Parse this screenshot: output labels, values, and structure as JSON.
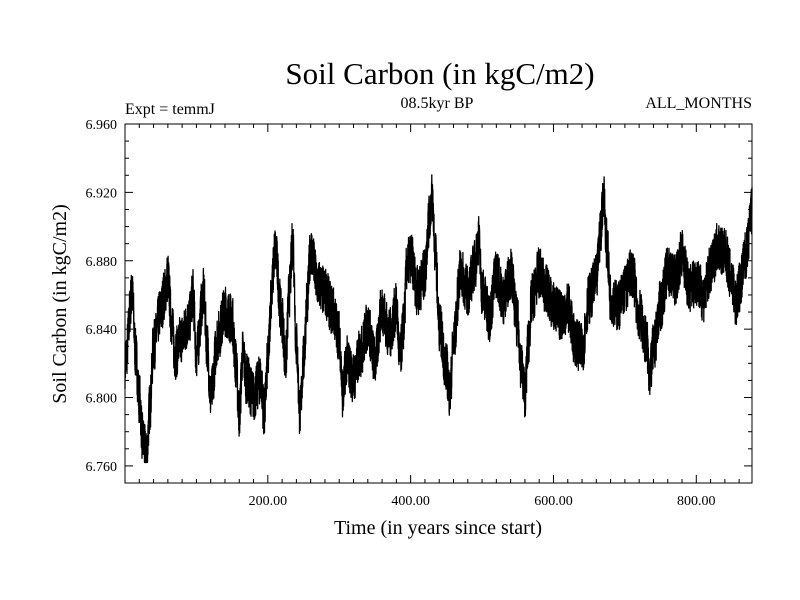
{
  "chart_data": {
    "type": "line",
    "title": "Soil Carbon (in kgC/m2)",
    "subtitle": "08.5kyr BP",
    "left_note": "Expt = temmJ",
    "right_note": "ALL_MONTHS",
    "xlabel": "Time (in years since start)",
    "ylabel": "Soil Carbon (in kgC/m2)",
    "xlim": [
      0,
      878
    ],
    "ylim": [
      6.75,
      6.96
    ],
    "xticks": [
      200,
      400,
      600,
      800
    ],
    "xtick_labels": [
      "200.00",
      "400.00",
      "600.00",
      "800.00"
    ],
    "yticks": [
      6.76,
      6.8,
      6.84,
      6.88,
      6.92,
      6.96
    ],
    "ytick_labels": [
      "6.760",
      "6.800",
      "6.840",
      "6.880",
      "6.920",
      "6.960"
    ],
    "series": [
      {
        "name": "Soil Carbon",
        "color": "#000000",
        "x": [
          0,
          10,
          15,
          20,
          25,
          30,
          35,
          40,
          50,
          55,
          60,
          65,
          70,
          80,
          90,
          95,
          100,
          110,
          115,
          120,
          130,
          140,
          150,
          155,
          160,
          165,
          170,
          180,
          190,
          195,
          200,
          205,
          210,
          220,
          225,
          230,
          235,
          240,
          245,
          250,
          255,
          260,
          270,
          280,
          290,
          300,
          305,
          310,
          320,
          330,
          340,
          350,
          360,
          370,
          380,
          385,
          390,
          395,
          400,
          410,
          420,
          425,
          430,
          435,
          440,
          450,
          455,
          460,
          470,
          480,
          490,
          495,
          500,
          510,
          520,
          530,
          540,
          550,
          555,
          560,
          565,
          570,
          580,
          590,
          600,
          610,
          620,
          630,
          640,
          650,
          660,
          665,
          670,
          675,
          680,
          690,
          700,
          710,
          720,
          730,
          735,
          740,
          750,
          760,
          770,
          780,
          790,
          800,
          810,
          820,
          830,
          840,
          850,
          855,
          860,
          870,
          878
        ],
        "y": [
          6.82,
          6.86,
          6.825,
          6.8,
          6.775,
          6.765,
          6.795,
          6.83,
          6.85,
          6.86,
          6.87,
          6.845,
          6.825,
          6.835,
          6.845,
          6.86,
          6.825,
          6.86,
          6.83,
          6.8,
          6.835,
          6.85,
          6.845,
          6.82,
          6.79,
          6.825,
          6.81,
          6.8,
          6.81,
          6.79,
          6.82,
          6.86,
          6.885,
          6.845,
          6.82,
          6.86,
          6.89,
          6.83,
          6.79,
          6.82,
          6.855,
          6.885,
          6.865,
          6.86,
          6.85,
          6.835,
          6.8,
          6.82,
          6.81,
          6.825,
          6.84,
          6.82,
          6.85,
          6.835,
          6.85,
          6.82,
          6.84,
          6.875,
          6.88,
          6.86,
          6.87,
          6.9,
          6.915,
          6.88,
          6.84,
          6.815,
          6.8,
          6.83,
          6.87,
          6.86,
          6.875,
          6.89,
          6.86,
          6.845,
          6.87,
          6.855,
          6.87,
          6.84,
          6.815,
          6.8,
          6.83,
          6.855,
          6.87,
          6.86,
          6.85,
          6.845,
          6.85,
          6.83,
          6.825,
          6.855,
          6.865,
          6.89,
          6.915,
          6.885,
          6.855,
          6.85,
          6.86,
          6.87,
          6.845,
          6.83,
          6.81,
          6.825,
          6.85,
          6.87,
          6.865,
          6.88,
          6.86,
          6.865,
          6.855,
          6.87,
          6.885,
          6.88,
          6.865,
          6.85,
          6.86,
          6.88,
          6.905
        ]
      }
    ],
    "legend": null,
    "grid": false
  }
}
